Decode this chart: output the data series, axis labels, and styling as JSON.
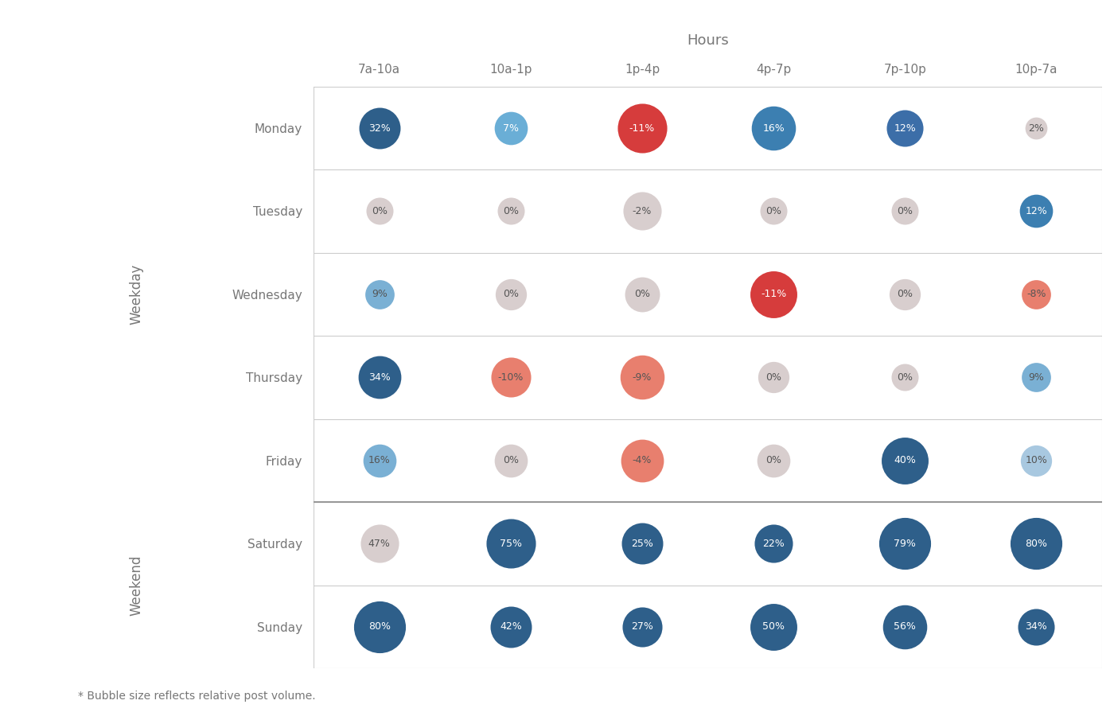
{
  "title": "Hours",
  "hours_labels": [
    "7a-10a",
    "10a-1p",
    "1p-4p",
    "4p-7p",
    "7p-10p",
    "10p-7a"
  ],
  "days": [
    "Monday",
    "Tuesday",
    "Wednesday",
    "Thursday",
    "Friday",
    "Saturday",
    "Sunday"
  ],
  "weekday_label": "Weekday",
  "weekend_label": "Weekend",
  "values": [
    [
      32,
      7,
      -11,
      16,
      12,
      2
    ],
    [
      0,
      0,
      -2,
      0,
      0,
      12
    ],
    [
      9,
      0,
      0,
      -11,
      0,
      -8
    ],
    [
      34,
      -10,
      -9,
      0,
      0,
      9
    ],
    [
      16,
      0,
      -4,
      0,
      40,
      10
    ],
    [
      47,
      75,
      25,
      22,
      79,
      80
    ],
    [
      80,
      42,
      27,
      50,
      56,
      34
    ]
  ],
  "bubble_sizes": [
    [
      1400,
      900,
      2000,
      1600,
      1100,
      400
    ],
    [
      600,
      600,
      1200,
      600,
      600,
      900
    ],
    [
      700,
      800,
      1000,
      1800,
      800,
      700
    ],
    [
      1500,
      1300,
      1600,
      800,
      600,
      700
    ],
    [
      900,
      900,
      1500,
      900,
      1800,
      800
    ],
    [
      1200,
      2000,
      1400,
      1200,
      2200,
      2200
    ],
    [
      2200,
      1400,
      1300,
      1800,
      1600,
      1100
    ]
  ],
  "colors": [
    [
      "#2e5f8a",
      "#6aaed6",
      "#d63c3c",
      "#3c7fb1",
      "#3c6ea8",
      "#d8cece"
    ],
    [
      "#d8cece",
      "#d8cece",
      "#d8cece",
      "#d8cece",
      "#d8cece",
      "#3c7fb1"
    ],
    [
      "#7ab0d4",
      "#d8cece",
      "#d8cece",
      "#d63c3c",
      "#d8cece",
      "#e87f6e"
    ],
    [
      "#2e5f8a",
      "#e87f6e",
      "#e87f6e",
      "#d8cece",
      "#d8cece",
      "#7ab0d4"
    ],
    [
      "#7ab0d4",
      "#d8cece",
      "#e87f6e",
      "#d8cece",
      "#2e5f8a",
      "#a8c8e0"
    ],
    [
      "#d8cece",
      "#2e5f8a",
      "#2e5f8a",
      "#2e5f8a",
      "#2e5f8a",
      "#2e5f8a"
    ],
    [
      "#2e5f8a",
      "#2e5f8a",
      "#2e5f8a",
      "#2e5f8a",
      "#2e5f8a",
      "#2e5f8a"
    ]
  ],
  "text_colors": [
    [
      "#ffffff",
      "#ffffff",
      "#ffffff",
      "#ffffff",
      "#ffffff",
      "#555555"
    ],
    [
      "#555555",
      "#555555",
      "#555555",
      "#555555",
      "#555555",
      "#ffffff"
    ],
    [
      "#555555",
      "#555555",
      "#555555",
      "#ffffff",
      "#555555",
      "#555555"
    ],
    [
      "#ffffff",
      "#555555",
      "#555555",
      "#555555",
      "#555555",
      "#555555"
    ],
    [
      "#555555",
      "#555555",
      "#555555",
      "#555555",
      "#ffffff",
      "#555555"
    ],
    [
      "#555555",
      "#ffffff",
      "#ffffff",
      "#ffffff",
      "#ffffff",
      "#ffffff"
    ],
    [
      "#ffffff",
      "#ffffff",
      "#ffffff",
      "#ffffff",
      "#ffffff",
      "#ffffff"
    ]
  ],
  "bg_color": "#ffffff",
  "grid_color": "#cccccc",
  "sep_color": "#999999",
  "footnote": "* Bubble size reflects relative post volume.",
  "font_color": "#777777"
}
